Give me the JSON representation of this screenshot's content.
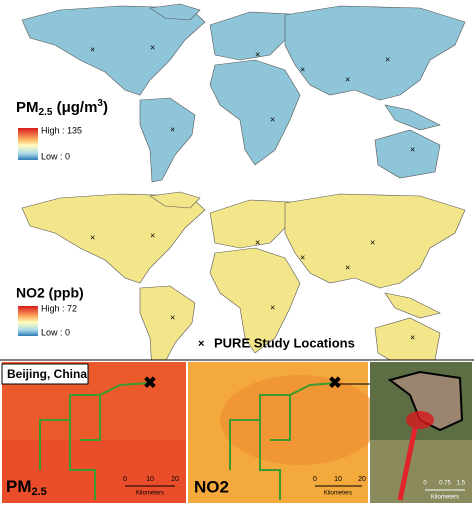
{
  "pm25_legend": {
    "title_parts": [
      "PM",
      "2.5",
      " (μg/m",
      "3",
      ")"
    ],
    "high": "High : 135",
    "low": "Low : 0"
  },
  "no2_legend": {
    "title": "NO2 (ppb)",
    "high": "High : 72",
    "low": "Low : 0"
  },
  "study_locations": {
    "marker": "×",
    "label": "PURE Study Locations"
  },
  "beijing": {
    "title": "Beijing, China",
    "panels": [
      {
        "label_parts": [
          "PM",
          "2.5"
        ],
        "scale": [
          "0",
          "10",
          "20"
        ],
        "unit": "Kilometers"
      },
      {
        "label": "NO2",
        "scale": [
          "0",
          "10",
          "20"
        ],
        "unit": "Kilometers"
      },
      {
        "scale": [
          "0",
          "0.75",
          "1.5"
        ],
        "unit": "Kilometers"
      }
    ]
  }
}
